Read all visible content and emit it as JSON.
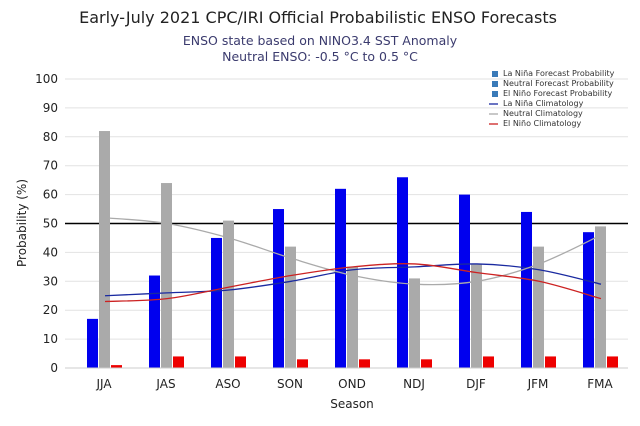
{
  "chart_data": {
    "type": "bar",
    "title": "Early-July 2021 CPC/IRI Official Probabilistic ENSO Forecasts",
    "subtitle": [
      "ENSO state based on NINO3.4 SST Anomaly",
      "Neutral ENSO: -0.5 °C to 0.5 °C"
    ],
    "xlabel": "Season",
    "ylabel": "Probability (%)",
    "ylim": [
      0,
      100
    ],
    "yticks": [
      0,
      10,
      20,
      30,
      40,
      50,
      60,
      70,
      80,
      90,
      100
    ],
    "grid": true,
    "reference_line": 50,
    "legend_placement": "top-right",
    "categories": [
      "JJA",
      "JAS",
      "ASO",
      "SON",
      "OND",
      "NDJ",
      "DJF",
      "JFM",
      "FMA"
    ],
    "series": [
      {
        "name": "La Niña Forecast Probability",
        "kind": "bar",
        "color": "#0000ee",
        "values": [
          17,
          32,
          45,
          55,
          62,
          66,
          60,
          54,
          47
        ]
      },
      {
        "name": "Neutral Forecast Probability",
        "kind": "bar",
        "color": "#aaaaaa",
        "values": [
          82,
          64,
          51,
          42,
          35,
          31,
          36,
          42,
          49
        ]
      },
      {
        "name": "El Niño Forecast Probability",
        "kind": "bar",
        "color": "#ee0000",
        "values": [
          1,
          4,
          4,
          3,
          3,
          3,
          4,
          4,
          4
        ]
      },
      {
        "name": "La Niña Climatology",
        "kind": "line",
        "color": "#1a2aa0",
        "values": [
          25,
          26,
          27,
          30,
          34,
          35,
          36,
          34,
          29
        ]
      },
      {
        "name": "Neutral Climatology",
        "kind": "line",
        "color": "#aaaaaa",
        "values": [
          52,
          50,
          45,
          38,
          32,
          29,
          30,
          36,
          46
        ]
      },
      {
        "name": "El Niño Climatology",
        "kind": "line",
        "color": "#cc2222",
        "values": [
          23,
          24,
          28,
          32,
          35,
          36,
          33,
          30,
          24
        ]
      }
    ]
  }
}
